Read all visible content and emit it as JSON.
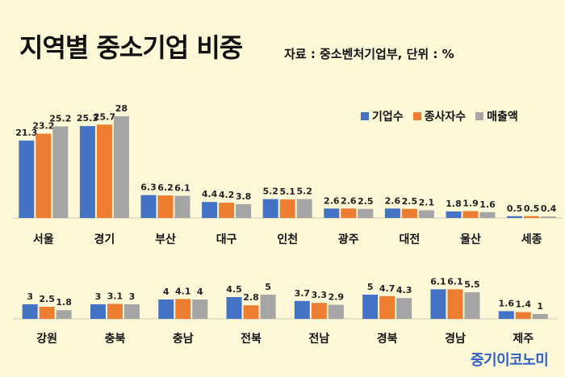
{
  "title": "지역별 중소기업 비중",
  "source_note": "자료 : 중소벤처기업부, 단위 : %",
  "watermark": "중기이코노미",
  "colors": {
    "background": "#fdf8d8",
    "series_1": "#4472c4",
    "series_2": "#ed7d31",
    "series_3": "#a5a5a5"
  },
  "chart_data": [
    {
      "type": "bar",
      "title": "지역별 중소기업 비중",
      "xlabel": "",
      "ylabel": "",
      "grid": false,
      "legend_position": "top-right",
      "categories": [
        "서울",
        "경기",
        "부산",
        "대구",
        "인천",
        "광주",
        "대전",
        "울산",
        "세종"
      ],
      "series": [
        {
          "name": "기업수",
          "values": [
            21.3,
            25.3,
            6.3,
            4.4,
            5.2,
            2.6,
            2.6,
            1.8,
            0.5
          ]
        },
        {
          "name": "종사자수",
          "values": [
            23.2,
            25.7,
            6.2,
            4.2,
            5.1,
            2.6,
            2.5,
            1.9,
            0.5
          ]
        },
        {
          "name": "매출액",
          "values": [
            25.2,
            28,
            6.1,
            3.8,
            5.2,
            2.5,
            2.1,
            1.6,
            0.4
          ]
        }
      ]
    },
    {
      "type": "bar",
      "xlabel": "",
      "ylabel": "",
      "grid": false,
      "categories": [
        "강원",
        "충북",
        "충남",
        "전북",
        "전남",
        "경북",
        "경남",
        "제주"
      ],
      "series": [
        {
          "name": "기업수",
          "values": [
            3,
            3,
            4,
            4.5,
            3.7,
            5,
            6.1,
            1.6
          ]
        },
        {
          "name": "종사자수",
          "values": [
            2.5,
            3.1,
            4.1,
            2.8,
            3.3,
            4.7,
            6.1,
            1.4
          ]
        },
        {
          "name": "매출액",
          "values": [
            1.8,
            3,
            4,
            5,
            2.9,
            4.3,
            5.5,
            1
          ]
        }
      ]
    }
  ]
}
